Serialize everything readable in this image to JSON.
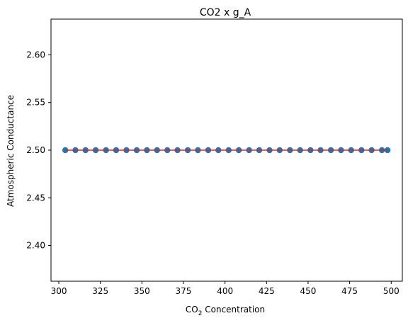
{
  "chart_data": {
    "type": "scatter",
    "title": "CO2 x g_A",
    "xlabel_main": "CO",
    "xlabel_sub": "2",
    "xlabel_rest": " Concentration",
    "ylabel": "Atmospheric Conductance",
    "xlim": [
      295.3,
      506.7
    ],
    "ylim": [
      2.3625,
      2.6375
    ],
    "xticks": [
      300,
      325,
      350,
      375,
      400,
      425,
      450,
      475,
      500
    ],
    "yticks": [
      2.4,
      2.45,
      2.5,
      2.55,
      2.6
    ],
    "xtick_labels": [
      "300",
      "325",
      "350",
      "375",
      "400",
      "425",
      "450",
      "475",
      "500"
    ],
    "ytick_labels": [
      "2.40",
      "2.45",
      "2.50",
      "2.55",
      "2.60"
    ],
    "x": [
      303.9,
      310.0,
      316.1,
      322.2,
      328.4,
      334.5,
      340.7,
      346.9,
      353.0,
      359.1,
      365.3,
      371.4,
      377.6,
      383.7,
      389.9,
      396.0,
      402.2,
      408.3,
      414.5,
      420.6,
      426.8,
      432.9,
      439.1,
      445.2,
      451.4,
      457.5,
      463.7,
      469.8,
      475.9,
      482.1,
      488.2,
      494.4,
      497.8
    ],
    "y_value": 2.5,
    "grid": false,
    "colors": {
      "points": "#1f77b4",
      "line": "#d62728"
    }
  }
}
